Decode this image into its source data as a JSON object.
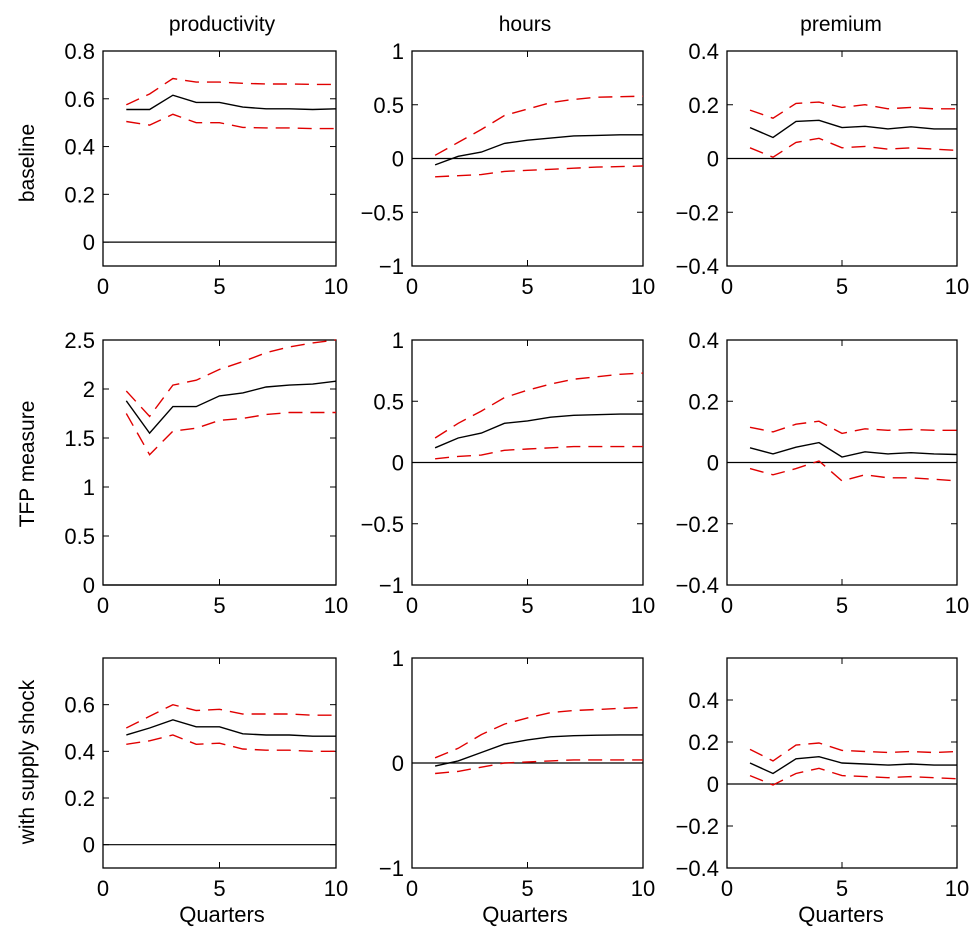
{
  "figure": {
    "column_titles": [
      "productivity",
      "hours",
      "premium"
    ],
    "row_labels": [
      "baseline",
      "TFP measure",
      "with supply shock"
    ],
    "xlabel": "Quarters"
  },
  "chart_data": [
    {
      "type": "line",
      "row": 0,
      "col": 0,
      "xlim": [
        0,
        10
      ],
      "ylim": [
        -0.1,
        0.8
      ],
      "xticks": [
        0,
        5,
        10
      ],
      "xtick_labels": [
        "0",
        "5",
        "10"
      ],
      "yticks": [
        0,
        0.2,
        0.4,
        0.6,
        0.8
      ],
      "ytick_labels": [
        "0",
        "0.2",
        "0.4",
        "0.6",
        "0.8"
      ],
      "x": [
        1,
        2,
        3,
        4,
        5,
        6,
        7,
        8,
        9,
        10
      ],
      "series": [
        {
          "role": "estimate",
          "values": [
            0.555,
            0.555,
            0.615,
            0.585,
            0.585,
            0.565,
            0.558,
            0.558,
            0.555,
            0.558
          ]
        },
        {
          "role": "upper",
          "values": [
            0.575,
            0.62,
            0.685,
            0.67,
            0.67,
            0.665,
            0.662,
            0.662,
            0.66,
            0.66
          ]
        },
        {
          "role": "lower",
          "values": [
            0.505,
            0.49,
            0.535,
            0.5,
            0.5,
            0.48,
            0.478,
            0.478,
            0.475,
            0.475
          ]
        }
      ],
      "zero_line": 0
    },
    {
      "type": "line",
      "row": 0,
      "col": 1,
      "xlim": [
        0,
        10
      ],
      "ylim": [
        -1,
        1
      ],
      "xticks": [
        0,
        5,
        10
      ],
      "xtick_labels": [
        "0",
        "5",
        "10"
      ],
      "yticks": [
        -1,
        -0.5,
        0,
        0.5,
        1
      ],
      "ytick_labels": [
        "−1",
        "−0.5",
        "0",
        "0.5",
        "1"
      ],
      "x": [
        1,
        2,
        3,
        4,
        5,
        6,
        7,
        8,
        9,
        10
      ],
      "series": [
        {
          "role": "estimate",
          "values": [
            -0.06,
            0.02,
            0.06,
            0.14,
            0.17,
            0.19,
            0.21,
            0.215,
            0.22,
            0.22
          ]
        },
        {
          "role": "upper",
          "values": [
            0.03,
            0.15,
            0.27,
            0.4,
            0.46,
            0.52,
            0.55,
            0.57,
            0.575,
            0.58
          ]
        },
        {
          "role": "lower",
          "values": [
            -0.17,
            -0.16,
            -0.15,
            -0.12,
            -0.11,
            -0.1,
            -0.09,
            -0.08,
            -0.075,
            -0.07
          ]
        }
      ],
      "zero_line": 0
    },
    {
      "type": "line",
      "row": 0,
      "col": 2,
      "xlim": [
        0,
        10
      ],
      "ylim": [
        -0.4,
        0.4
      ],
      "xticks": [
        0,
        5,
        10
      ],
      "xtick_labels": [
        "0",
        "5",
        "10"
      ],
      "yticks": [
        -0.4,
        -0.2,
        0,
        0.2,
        0.4
      ],
      "ytick_labels": [
        "−0.4",
        "−0.2",
        "0",
        "0.2",
        "0.4"
      ],
      "x": [
        1,
        2,
        3,
        4,
        5,
        6,
        7,
        8,
        9,
        10
      ],
      "series": [
        {
          "role": "estimate",
          "values": [
            0.115,
            0.078,
            0.138,
            0.142,
            0.115,
            0.12,
            0.11,
            0.118,
            0.11,
            0.11
          ]
        },
        {
          "role": "upper",
          "values": [
            0.18,
            0.15,
            0.205,
            0.21,
            0.19,
            0.2,
            0.185,
            0.19,
            0.185,
            0.185
          ]
        },
        {
          "role": "lower",
          "values": [
            0.04,
            0.005,
            0.06,
            0.075,
            0.04,
            0.045,
            0.035,
            0.04,
            0.035,
            0.03
          ]
        }
      ],
      "zero_line": 0
    },
    {
      "type": "line",
      "row": 1,
      "col": 0,
      "xlim": [
        0,
        10
      ],
      "ylim": [
        0,
        2.5
      ],
      "xticks": [
        0,
        5,
        10
      ],
      "xtick_labels": [
        "0",
        "5",
        "10"
      ],
      "yticks": [
        0,
        0.5,
        1,
        1.5,
        2,
        2.5
      ],
      "ytick_labels": [
        "0",
        "0.5",
        "1",
        "1.5",
        "2",
        "2.5"
      ],
      "x": [
        1,
        2,
        3,
        4,
        5,
        6,
        7,
        8,
        9,
        10
      ],
      "series": [
        {
          "role": "estimate",
          "values": [
            1.88,
            1.55,
            1.82,
            1.82,
            1.93,
            1.96,
            2.02,
            2.04,
            2.05,
            2.08
          ]
        },
        {
          "role": "upper",
          "values": [
            1.98,
            1.72,
            2.04,
            2.09,
            2.2,
            2.28,
            2.37,
            2.43,
            2.47,
            2.5
          ]
        },
        {
          "role": "lower",
          "values": [
            1.75,
            1.33,
            1.57,
            1.6,
            1.68,
            1.7,
            1.74,
            1.76,
            1.76,
            1.76
          ]
        }
      ],
      "zero_line": 0
    },
    {
      "type": "line",
      "row": 1,
      "col": 1,
      "xlim": [
        0,
        10
      ],
      "ylim": [
        -1,
        1
      ],
      "xticks": [
        0,
        5,
        10
      ],
      "xtick_labels": [
        "0",
        "5",
        "10"
      ],
      "yticks": [
        -1,
        -0.5,
        0,
        0.5,
        1
      ],
      "ytick_labels": [
        "−1",
        "−0.5",
        "0",
        "0.5",
        "1"
      ],
      "x": [
        1,
        2,
        3,
        4,
        5,
        6,
        7,
        8,
        9,
        10
      ],
      "series": [
        {
          "role": "estimate",
          "values": [
            0.12,
            0.2,
            0.24,
            0.32,
            0.34,
            0.37,
            0.385,
            0.39,
            0.395,
            0.395
          ]
        },
        {
          "role": "upper",
          "values": [
            0.2,
            0.32,
            0.42,
            0.53,
            0.59,
            0.64,
            0.68,
            0.7,
            0.72,
            0.73
          ]
        },
        {
          "role": "lower",
          "values": [
            0.03,
            0.05,
            0.06,
            0.1,
            0.11,
            0.12,
            0.13,
            0.13,
            0.13,
            0.13
          ]
        }
      ],
      "zero_line": 0
    },
    {
      "type": "line",
      "row": 1,
      "col": 2,
      "xlim": [
        0,
        10
      ],
      "ylim": [
        -0.4,
        0.4
      ],
      "xticks": [
        0,
        5,
        10
      ],
      "xtick_labels": [
        "0",
        "5",
        "10"
      ],
      "yticks": [
        -0.4,
        -0.2,
        0,
        0.2,
        0.4
      ],
      "ytick_labels": [
        "−0.4",
        "−0.2",
        "0",
        "0.2",
        "0.4"
      ],
      "x": [
        1,
        2,
        3,
        4,
        5,
        6,
        7,
        8,
        9,
        10
      ],
      "series": [
        {
          "role": "estimate",
          "values": [
            0.048,
            0.028,
            0.05,
            0.065,
            0.018,
            0.035,
            0.028,
            0.032,
            0.028,
            0.026
          ]
        },
        {
          "role": "upper",
          "values": [
            0.115,
            0.1,
            0.125,
            0.135,
            0.095,
            0.11,
            0.105,
            0.108,
            0.105,
            0.105
          ]
        },
        {
          "role": "lower",
          "values": [
            -0.02,
            -0.04,
            -0.02,
            0.005,
            -0.06,
            -0.04,
            -0.05,
            -0.05,
            -0.055,
            -0.06
          ]
        }
      ],
      "zero_line": 0
    },
    {
      "type": "line",
      "row": 2,
      "col": 0,
      "xlim": [
        0,
        10
      ],
      "ylim": [
        -0.1,
        0.8
      ],
      "xticks": [
        0,
        5,
        10
      ],
      "xtick_labels": [
        "0",
        "5",
        "10"
      ],
      "yticks": [
        0,
        0.2,
        0.4,
        0.6
      ],
      "ytick_labels": [
        "0",
        "0.2",
        "0.4",
        "0.6"
      ],
      "x": [
        1,
        2,
        3,
        4,
        5,
        6,
        7,
        8,
        9,
        10
      ],
      "series": [
        {
          "role": "estimate",
          "values": [
            0.47,
            0.5,
            0.535,
            0.505,
            0.505,
            0.475,
            0.47,
            0.47,
            0.465,
            0.465
          ]
        },
        {
          "role": "upper",
          "values": [
            0.5,
            0.55,
            0.6,
            0.575,
            0.58,
            0.56,
            0.56,
            0.56,
            0.555,
            0.555
          ]
        },
        {
          "role": "lower",
          "values": [
            0.43,
            0.445,
            0.47,
            0.43,
            0.435,
            0.41,
            0.405,
            0.405,
            0.4,
            0.4
          ]
        }
      ],
      "zero_line": 0
    },
    {
      "type": "line",
      "row": 2,
      "col": 1,
      "xlim": [
        0,
        10
      ],
      "ylim": [
        -1,
        1
      ],
      "xticks": [
        0,
        5,
        10
      ],
      "xtick_labels": [
        "0",
        "5",
        "10"
      ],
      "yticks": [
        -1,
        0,
        1
      ],
      "ytick_labels": [
        "−1",
        "0",
        "1"
      ],
      "x": [
        1,
        2,
        3,
        4,
        5,
        6,
        7,
        8,
        9,
        10
      ],
      "series": [
        {
          "role": "estimate",
          "values": [
            -0.03,
            0.02,
            0.1,
            0.18,
            0.22,
            0.25,
            0.26,
            0.265,
            0.268,
            0.268
          ]
        },
        {
          "role": "upper",
          "values": [
            0.05,
            0.14,
            0.27,
            0.37,
            0.43,
            0.48,
            0.5,
            0.51,
            0.52,
            0.53
          ]
        },
        {
          "role": "lower",
          "values": [
            -0.1,
            -0.08,
            -0.04,
            0.0,
            0.01,
            0.02,
            0.03,
            0.03,
            0.03,
            0.03
          ]
        }
      ],
      "zero_line": 0
    },
    {
      "type": "line",
      "row": 2,
      "col": 2,
      "xlim": [
        0,
        10
      ],
      "ylim": [
        -0.4,
        0.6
      ],
      "xticks": [
        0,
        5,
        10
      ],
      "xtick_labels": [
        "0",
        "5",
        "10"
      ],
      "yticks": [
        -0.4,
        -0.2,
        0,
        0.2,
        0.4
      ],
      "ytick_labels": [
        "−0.4",
        "−0.2",
        "0",
        "0.2",
        "0.4"
      ],
      "x": [
        1,
        2,
        3,
        4,
        5,
        6,
        7,
        8,
        9,
        10
      ],
      "series": [
        {
          "role": "estimate",
          "values": [
            0.1,
            0.05,
            0.12,
            0.13,
            0.1,
            0.095,
            0.09,
            0.095,
            0.09,
            0.09
          ]
        },
        {
          "role": "upper",
          "values": [
            0.165,
            0.11,
            0.185,
            0.195,
            0.16,
            0.155,
            0.15,
            0.155,
            0.15,
            0.155
          ]
        },
        {
          "role": "lower",
          "values": [
            0.04,
            -0.005,
            0.05,
            0.075,
            0.04,
            0.035,
            0.03,
            0.035,
            0.03,
            0.025
          ]
        }
      ],
      "zero_line": 0
    }
  ]
}
